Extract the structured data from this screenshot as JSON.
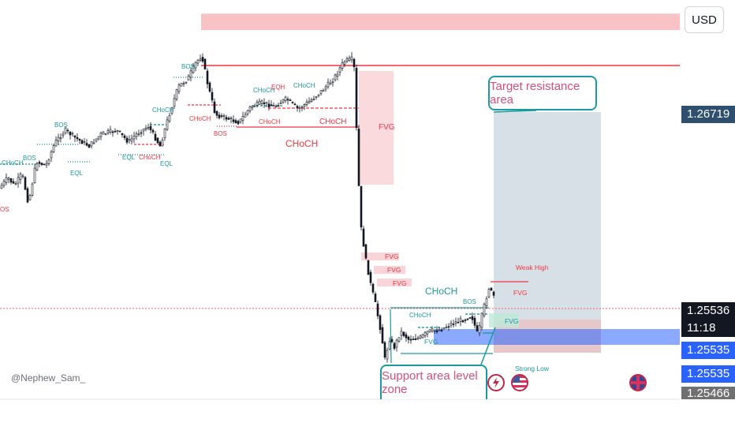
{
  "toolbar": {
    "currency_label": "USD"
  },
  "watermark": "@Nephew_Sam_",
  "callouts": {
    "target": "Target resistance area",
    "support": "Support area level zone"
  },
  "price_tags": [
    {
      "text": "1.26719",
      "color": "#2f4f6f"
    },
    {
      "text": "1.25536",
      "color": "#131722"
    },
    {
      "text": "11:18",
      "color": "#131722"
    },
    {
      "text": "1.25535",
      "color": "#2962ff"
    },
    {
      "text": "1.25535",
      "color": "#2962ff"
    },
    {
      "text": "1.25466",
      "color": "#707070"
    }
  ],
  "colors": {
    "bull": "#089981",
    "bear": "#f23645",
    "candle": "#131722",
    "fvg_fill": "#f7c2c7",
    "teal": "#1b9aa0",
    "blue_zone": "#2962ff",
    "target_box": "#b8c7d4"
  },
  "chart_data": {
    "type": "candlestick",
    "y_range": [
      1.2538,
      1.2697
    ],
    "current_price": 1.25536,
    "target_price": 1.26719,
    "stop_price": 1.25466,
    "support_zone": [
      1.25505,
      1.25545
    ],
    "bearish_zone": [
      1.2686,
      1.2692
    ],
    "smc_labels": [
      {
        "text": "OS",
        "role": "bear"
      },
      {
        "text": "CHoCH",
        "role": "bull"
      },
      {
        "text": "BOS",
        "role": "bull"
      },
      {
        "text": "EQL",
        "role": "bull"
      },
      {
        "text": "BOS",
        "role": "bull"
      },
      {
        "text": "EQL",
        "role": "bull"
      },
      {
        "text": "CHoCH",
        "role": "bear"
      },
      {
        "text": "EQL",
        "role": "bull"
      },
      {
        "text": "CHoCH",
        "role": "bull"
      },
      {
        "text": "BOS",
        "role": "bull"
      },
      {
        "text": "CHoCH",
        "role": "bear"
      },
      {
        "text": "BOS",
        "role": "bear"
      },
      {
        "text": "CHoCH",
        "role": "bull"
      },
      {
        "text": "EQH",
        "role": "bear"
      },
      {
        "text": "CHoCH",
        "role": "bull"
      },
      {
        "text": "CHoCH",
        "role": "bear"
      },
      {
        "text": "CHoCH",
        "role": "bear"
      },
      {
        "text": "CHoCH",
        "role": "bear"
      },
      {
        "text": "FVG",
        "role": "bear"
      },
      {
        "text": "FVG",
        "role": "bear"
      },
      {
        "text": "FVG",
        "role": "bear"
      },
      {
        "text": "FVG",
        "role": "bear"
      },
      {
        "text": "CHoCH",
        "role": "bull"
      },
      {
        "text": "CHoCH",
        "role": "bull"
      },
      {
        "text": "BOS",
        "role": "bull"
      },
      {
        "text": "FVG",
        "role": "bull"
      },
      {
        "text": "Weak High",
        "role": "bear"
      },
      {
        "text": "FVG",
        "role": "bear"
      },
      {
        "text": "FVG",
        "role": "bull"
      },
      {
        "text": "Strong Low",
        "role": "bull"
      }
    ]
  }
}
